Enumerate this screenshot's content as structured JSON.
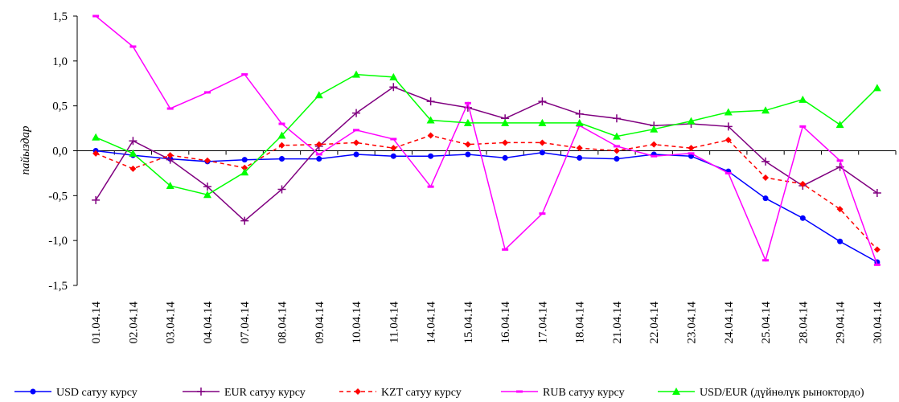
{
  "chart_data": {
    "type": "line",
    "title": "",
    "ylabel": "пайыздар",
    "xlabel": "",
    "ylim": [
      -1.5,
      1.5
    ],
    "yticks": [
      -1.5,
      -1.0,
      -0.5,
      0.0,
      0.5,
      1.0,
      1.5
    ],
    "ytick_labels": [
      "-1,5",
      "-1,0",
      "-0,5",
      "0,0",
      "0,5",
      "1,0",
      "1,5"
    ],
    "grid": false,
    "legend_position": "bottom",
    "categories": [
      "01.04.14",
      "02.04.14",
      "03.04.14",
      "04.04.14",
      "07.04.14",
      "08.04.14",
      "09.04.14",
      "10.04.14",
      "11.04.14",
      "14.04.14",
      "15.04.14",
      "16.04.14",
      "17.04.14",
      "18.04.14",
      "21.04.14",
      "22.04.14",
      "23.04.14",
      "24.04.14",
      "25.04.14",
      "28.04.14",
      "29.04.14",
      "30.04.14"
    ],
    "series": [
      {
        "name": "USD сатуу курсу",
        "color": "#0000ff",
        "dash": "",
        "marker": "circle",
        "values": [
          0.0,
          -0.05,
          -0.09,
          -0.12,
          -0.1,
          -0.09,
          -0.09,
          -0.04,
          -0.06,
          -0.06,
          -0.04,
          -0.08,
          -0.02,
          -0.08,
          -0.09,
          -0.04,
          -0.06,
          -0.23,
          -0.53,
          -0.75,
          -1.01,
          -1.24
        ]
      },
      {
        "name": "EUR сатуу курсу",
        "color": "#800080",
        "dash": "",
        "marker": "plus",
        "values": [
          -0.55,
          0.11,
          -0.1,
          -0.4,
          -0.78,
          -0.43,
          0.05,
          0.42,
          0.71,
          0.55,
          0.48,
          0.36,
          0.55,
          0.41,
          0.36,
          0.28,
          0.3,
          0.27,
          -0.12,
          -0.39,
          -0.18,
          -0.47
        ]
      },
      {
        "name": "KZT сатуу курсу",
        "color": "#ff0000",
        "dash": "5,4",
        "marker": "diamond",
        "values": [
          -0.03,
          -0.2,
          -0.05,
          -0.11,
          -0.19,
          0.06,
          0.07,
          0.09,
          0.03,
          0.17,
          0.07,
          0.09,
          0.09,
          0.03,
          0.0,
          0.07,
          0.03,
          0.12,
          -0.3,
          -0.37,
          -0.65,
          -1.1
        ]
      },
      {
        "name": "RUB сатуу курсу",
        "color": "#ff00ff",
        "dash": "",
        "marker": "dash",
        "values": [
          1.5,
          1.16,
          0.47,
          0.65,
          0.85,
          0.3,
          -0.04,
          0.23,
          0.13,
          -0.4,
          0.53,
          -1.1,
          -0.7,
          0.28,
          0.05,
          -0.06,
          -0.03,
          -0.25,
          -1.22,
          0.27,
          -0.11,
          -1.27
        ]
      },
      {
        "name": "USD/EUR (дүйнөлүк рыноктордо)",
        "color": "#00ff00",
        "dash": "",
        "marker": "triangle",
        "values": [
          0.15,
          -0.03,
          -0.39,
          -0.49,
          -0.24,
          0.17,
          0.62,
          0.85,
          0.82,
          0.34,
          0.31,
          0.31,
          0.31,
          0.31,
          0.16,
          0.24,
          0.33,
          0.43,
          0.45,
          0.57,
          0.29,
          0.7
        ]
      }
    ]
  }
}
